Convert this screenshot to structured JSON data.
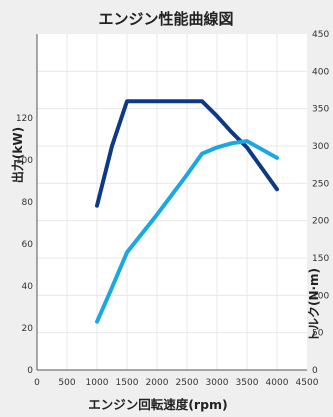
{
  "chart_data": {
    "type": "line",
    "title": "エンジン性能曲線図",
    "xlabel": "エンジン回転速度(rpm)",
    "ylabel_left": "出力(kW)",
    "ylabel_right": "トルク(N·m)",
    "xlim": [
      0,
      4500
    ],
    "ylim_left": [
      0,
      160
    ],
    "ylim_right": [
      0,
      450
    ],
    "x_ticks": [
      "0",
      "500",
      "1000",
      "1500",
      "2000",
      "2500",
      "3000",
      "3500",
      "4000",
      "4500"
    ],
    "y_left_ticks": [
      "0",
      "20",
      "40",
      "60",
      "80",
      "100",
      "120"
    ],
    "y_right_ticks": [
      "0",
      "50",
      "100",
      "150",
      "200",
      "250",
      "300",
      "350",
      "400",
      "450"
    ],
    "grid": true,
    "series": [
      {
        "axis": "right",
        "color": "#0d3a86",
        "x": [
          1000,
          1250,
          1500,
          2000,
          2500,
          2750,
          3000,
          3250,
          3500,
          4000
        ],
        "values": [
          220,
          300,
          360,
          360,
          360,
          360,
          340,
          318,
          298,
          242
        ]
      },
      {
        "axis": "left",
        "color": "#19a8e2",
        "x": [
          1000,
          1200,
          1500,
          2000,
          2500,
          2750,
          3000,
          3250,
          3500,
          4000
        ],
        "values": [
          23,
          36,
          56,
          74,
          93,
          103,
          106,
          108,
          109,
          101
        ]
      }
    ]
  }
}
